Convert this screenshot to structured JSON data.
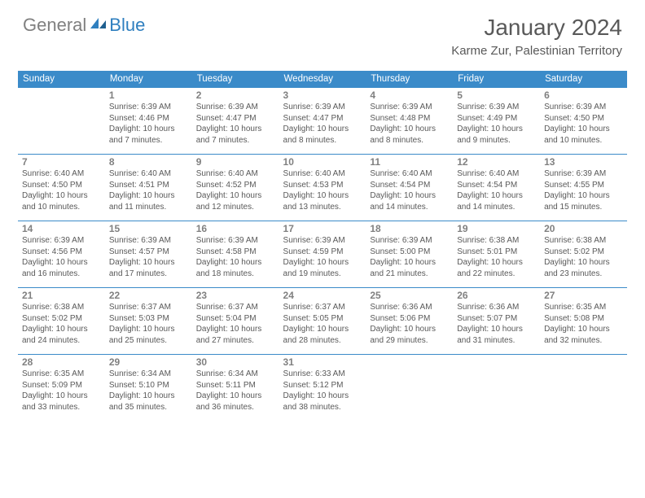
{
  "logo": {
    "text1": "General",
    "text2": "Blue"
  },
  "title": "January 2024",
  "location": "Karme Zur, Palestinian Territory",
  "colors": {
    "header_bg": "#3b8bc9",
    "border": "#3b8bc9",
    "text": "#595959",
    "daynum": "#808080",
    "logo_gray": "#808080",
    "logo_blue": "#2f7fbf"
  },
  "day_headers": [
    "Sunday",
    "Monday",
    "Tuesday",
    "Wednesday",
    "Thursday",
    "Friday",
    "Saturday"
  ],
  "weeks": [
    [
      null,
      {
        "n": "1",
        "sr": "6:39 AM",
        "ss": "4:46 PM",
        "dl": "10 hours and 7 minutes."
      },
      {
        "n": "2",
        "sr": "6:39 AM",
        "ss": "4:47 PM",
        "dl": "10 hours and 7 minutes."
      },
      {
        "n": "3",
        "sr": "6:39 AM",
        "ss": "4:47 PM",
        "dl": "10 hours and 8 minutes."
      },
      {
        "n": "4",
        "sr": "6:39 AM",
        "ss": "4:48 PM",
        "dl": "10 hours and 8 minutes."
      },
      {
        "n": "5",
        "sr": "6:39 AM",
        "ss": "4:49 PM",
        "dl": "10 hours and 9 minutes."
      },
      {
        "n": "6",
        "sr": "6:39 AM",
        "ss": "4:50 PM",
        "dl": "10 hours and 10 minutes."
      }
    ],
    [
      {
        "n": "7",
        "sr": "6:40 AM",
        "ss": "4:50 PM",
        "dl": "10 hours and 10 minutes."
      },
      {
        "n": "8",
        "sr": "6:40 AM",
        "ss": "4:51 PM",
        "dl": "10 hours and 11 minutes."
      },
      {
        "n": "9",
        "sr": "6:40 AM",
        "ss": "4:52 PM",
        "dl": "10 hours and 12 minutes."
      },
      {
        "n": "10",
        "sr": "6:40 AM",
        "ss": "4:53 PM",
        "dl": "10 hours and 13 minutes."
      },
      {
        "n": "11",
        "sr": "6:40 AM",
        "ss": "4:54 PM",
        "dl": "10 hours and 14 minutes."
      },
      {
        "n": "12",
        "sr": "6:40 AM",
        "ss": "4:54 PM",
        "dl": "10 hours and 14 minutes."
      },
      {
        "n": "13",
        "sr": "6:39 AM",
        "ss": "4:55 PM",
        "dl": "10 hours and 15 minutes."
      }
    ],
    [
      {
        "n": "14",
        "sr": "6:39 AM",
        "ss": "4:56 PM",
        "dl": "10 hours and 16 minutes."
      },
      {
        "n": "15",
        "sr": "6:39 AM",
        "ss": "4:57 PM",
        "dl": "10 hours and 17 minutes."
      },
      {
        "n": "16",
        "sr": "6:39 AM",
        "ss": "4:58 PM",
        "dl": "10 hours and 18 minutes."
      },
      {
        "n": "17",
        "sr": "6:39 AM",
        "ss": "4:59 PM",
        "dl": "10 hours and 19 minutes."
      },
      {
        "n": "18",
        "sr": "6:39 AM",
        "ss": "5:00 PM",
        "dl": "10 hours and 21 minutes."
      },
      {
        "n": "19",
        "sr": "6:38 AM",
        "ss": "5:01 PM",
        "dl": "10 hours and 22 minutes."
      },
      {
        "n": "20",
        "sr": "6:38 AM",
        "ss": "5:02 PM",
        "dl": "10 hours and 23 minutes."
      }
    ],
    [
      {
        "n": "21",
        "sr": "6:38 AM",
        "ss": "5:02 PM",
        "dl": "10 hours and 24 minutes."
      },
      {
        "n": "22",
        "sr": "6:37 AM",
        "ss": "5:03 PM",
        "dl": "10 hours and 25 minutes."
      },
      {
        "n": "23",
        "sr": "6:37 AM",
        "ss": "5:04 PM",
        "dl": "10 hours and 27 minutes."
      },
      {
        "n": "24",
        "sr": "6:37 AM",
        "ss": "5:05 PM",
        "dl": "10 hours and 28 minutes."
      },
      {
        "n": "25",
        "sr": "6:36 AM",
        "ss": "5:06 PM",
        "dl": "10 hours and 29 minutes."
      },
      {
        "n": "26",
        "sr": "6:36 AM",
        "ss": "5:07 PM",
        "dl": "10 hours and 31 minutes."
      },
      {
        "n": "27",
        "sr": "6:35 AM",
        "ss": "5:08 PM",
        "dl": "10 hours and 32 minutes."
      }
    ],
    [
      {
        "n": "28",
        "sr": "6:35 AM",
        "ss": "5:09 PM",
        "dl": "10 hours and 33 minutes."
      },
      {
        "n": "29",
        "sr": "6:34 AM",
        "ss": "5:10 PM",
        "dl": "10 hours and 35 minutes."
      },
      {
        "n": "30",
        "sr": "6:34 AM",
        "ss": "5:11 PM",
        "dl": "10 hours and 36 minutes."
      },
      {
        "n": "31",
        "sr": "6:33 AM",
        "ss": "5:12 PM",
        "dl": "10 hours and 38 minutes."
      },
      null,
      null,
      null
    ]
  ],
  "labels": {
    "sunrise": "Sunrise:",
    "sunset": "Sunset:",
    "daylight": "Daylight:"
  }
}
